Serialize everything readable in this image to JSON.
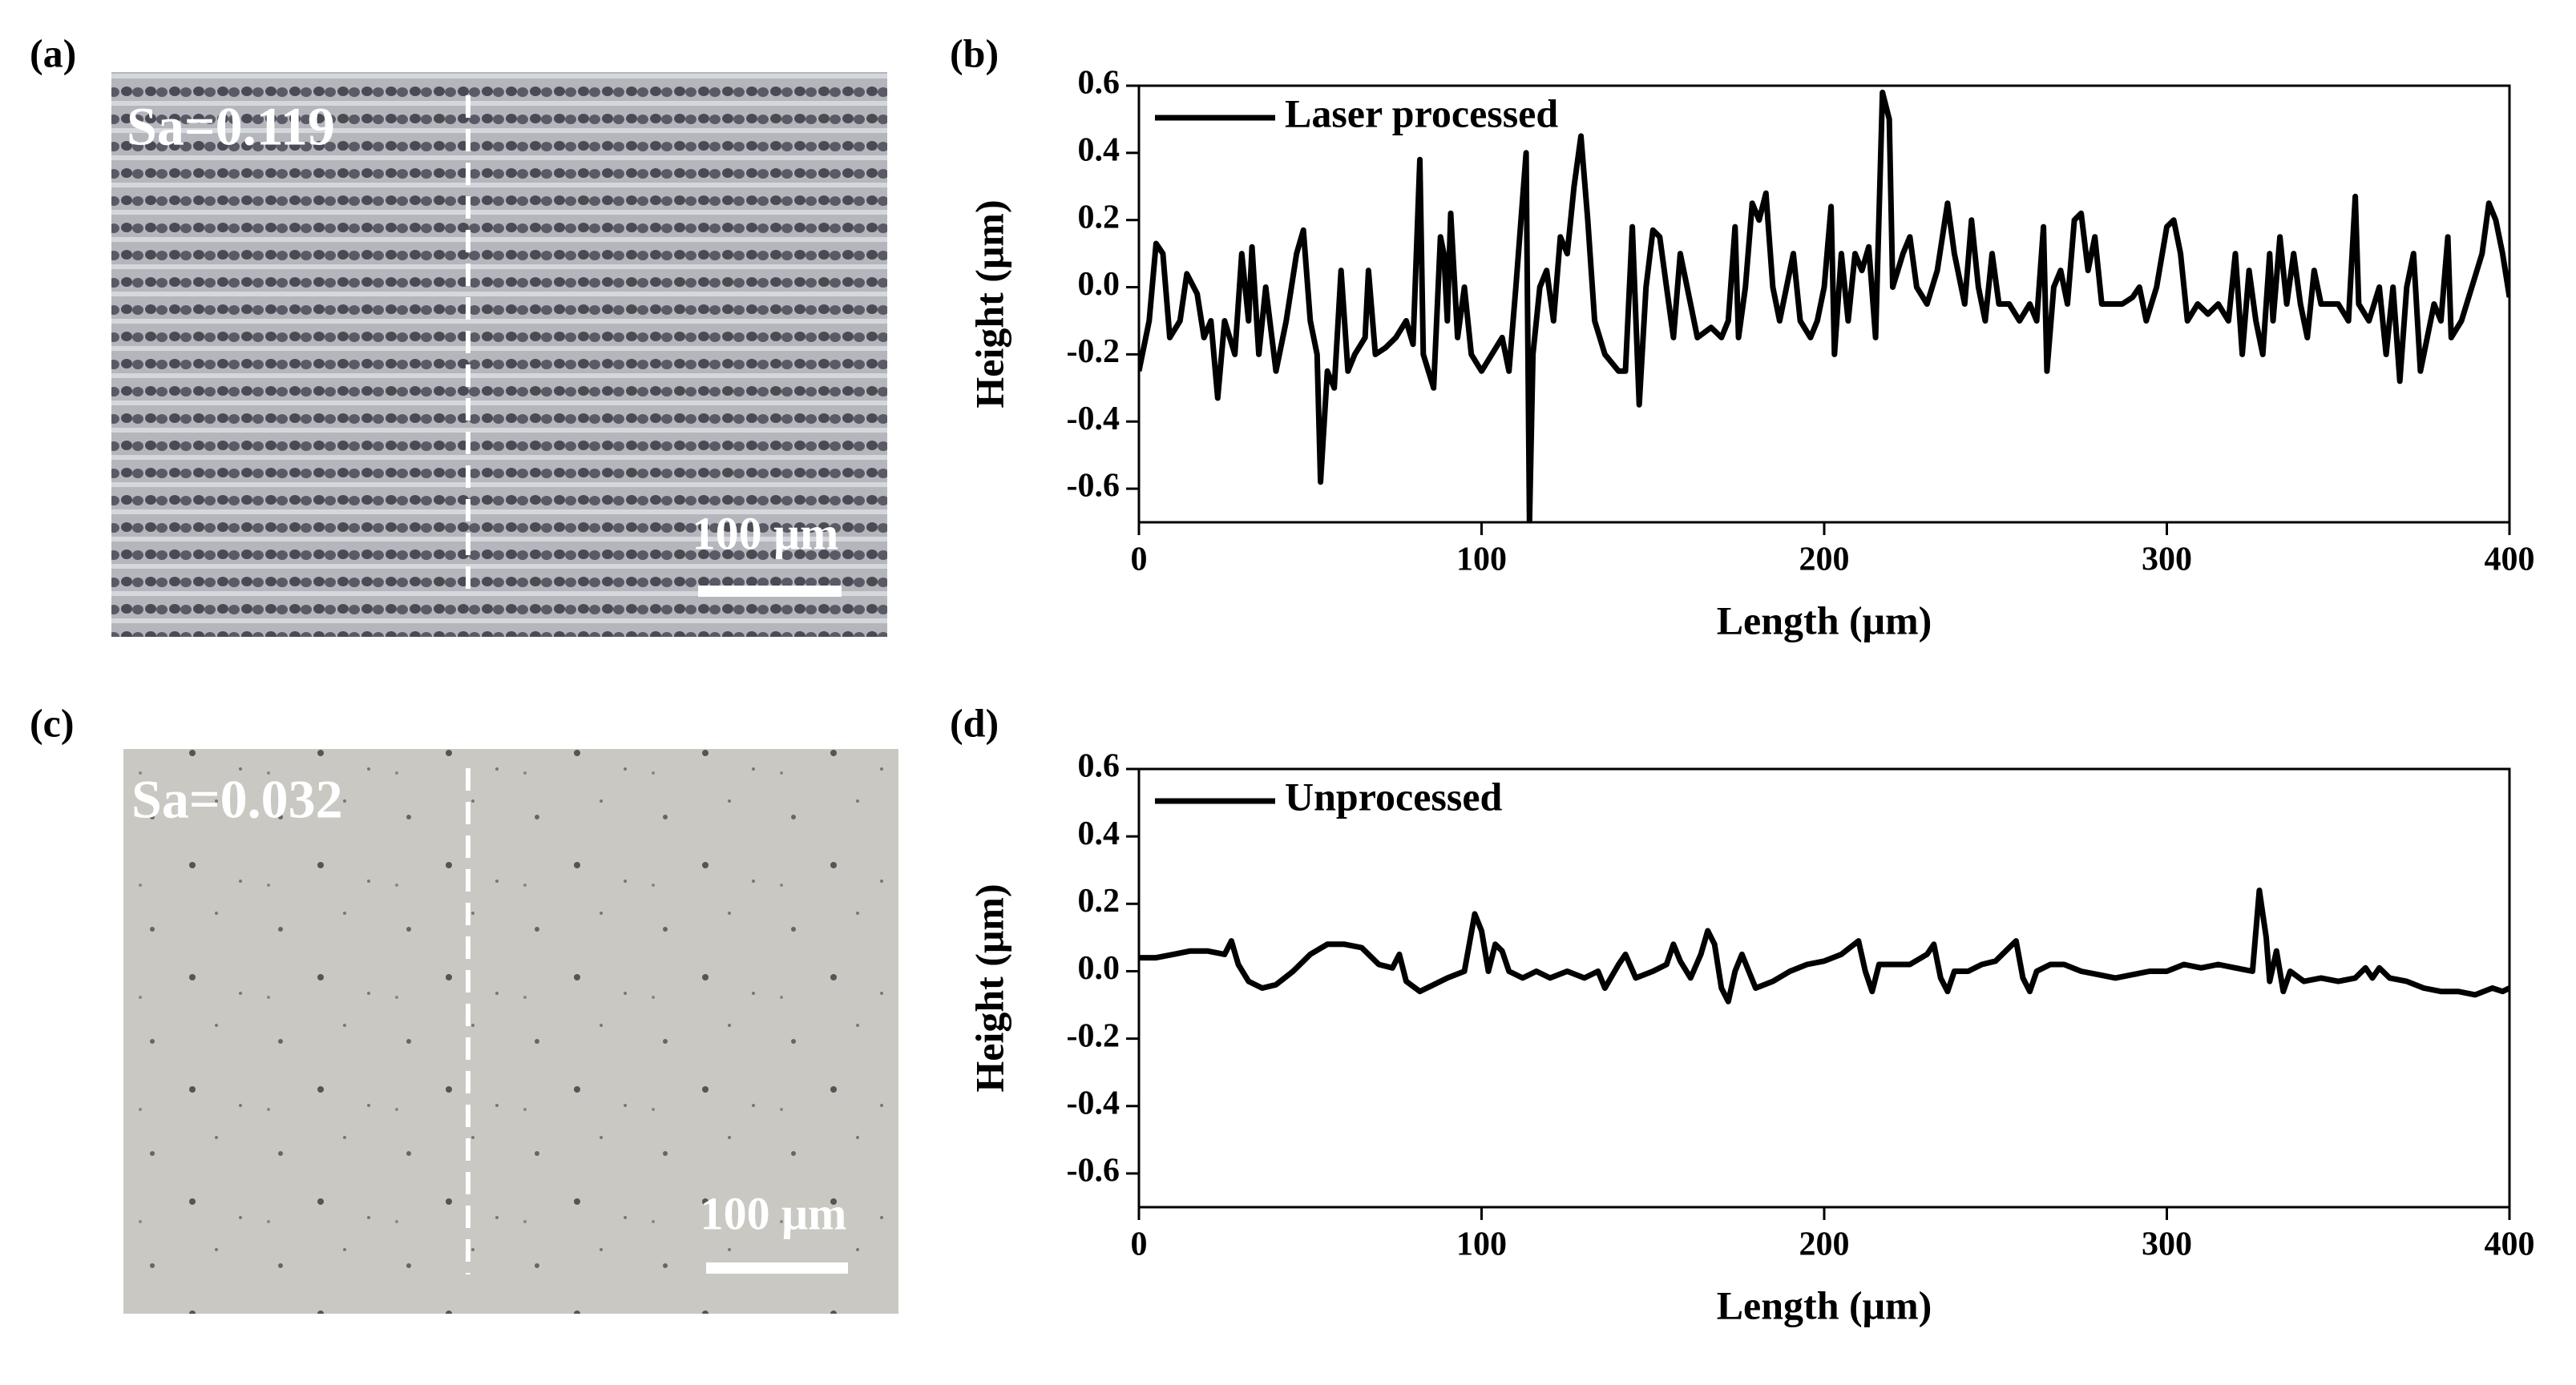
{
  "panels": [
    {
      "label": "(a)",
      "annotation": "Sa=0.119",
      "scale_bar": "100 μm"
    },
    {
      "label": "(c)",
      "annotation": "Sa=0.032",
      "scale_bar": "100 μm"
    }
  ],
  "chart_data": [
    {
      "type": "line",
      "panel_label": "(b)",
      "xlabel": "Length (μm)",
      "ylabel": "Height (μm)",
      "xlim": [
        0,
        400
      ],
      "ylim": [
        -0.7,
        0.6
      ],
      "xticks": [
        0,
        100,
        200,
        300,
        400
      ],
      "yticks": [
        -0.6,
        -0.4,
        -0.2,
        {
          "value": 0,
          "label": "0.0"
        },
        0.2,
        0.4,
        0.6
      ],
      "legend": "upper left",
      "x": [
        0,
        3,
        5,
        7,
        9,
        12,
        14,
        17,
        19,
        21,
        23,
        25,
        28,
        30,
        32,
        33,
        35,
        37,
        40,
        43,
        46,
        48,
        50,
        52,
        53,
        55,
        57,
        59,
        61,
        63,
        66,
        67,
        69,
        72,
        75,
        78,
        80,
        82,
        83,
        86,
        88,
        89,
        90,
        91,
        93,
        95,
        97,
        100,
        103,
        106,
        108,
        110,
        113,
        114,
        115,
        117,
        119,
        121,
        123,
        125,
        127,
        129,
        131,
        133,
        136,
        140,
        142,
        144,
        146,
        148,
        150,
        152,
        154,
        156,
        158,
        160,
        163,
        167,
        170,
        172,
        174,
        175,
        177,
        179,
        181,
        183,
        185,
        187,
        189,
        191,
        193,
        196,
        198,
        200,
        202,
        203,
        205,
        207,
        209,
        211,
        213,
        215,
        217,
        219,
        220,
        223,
        225,
        227,
        230,
        233,
        236,
        238,
        241,
        243,
        245,
        247,
        249,
        251,
        254,
        257,
        260,
        262,
        264,
        265,
        267,
        269,
        271,
        273,
        275,
        277,
        279,
        281,
        284,
        287,
        290,
        292,
        294,
        297,
        300,
        302,
        304,
        306,
        309,
        312,
        315,
        318,
        320,
        322,
        324,
        326,
        328,
        330,
        331,
        333,
        335,
        337,
        339,
        341,
        343,
        345,
        348,
        350,
        353,
        355,
        356,
        359,
        362,
        364,
        366,
        368,
        370,
        372,
        374,
        376,
        378,
        380,
        382,
        383,
        386,
        389,
        392,
        394,
        396,
        398,
        400
      ],
      "series": [
        {
          "name": "Laser processed",
          "color": "#000000",
          "values": [
            -0.25,
            -0.1,
            0.13,
            0.1,
            -0.15,
            -0.1,
            0.04,
            -0.02,
            -0.15,
            -0.1,
            -0.33,
            -0.1,
            -0.2,
            0.1,
            -0.1,
            0.12,
            -0.2,
            0,
            -0.25,
            -0.1,
            0.1,
            0.17,
            -0.1,
            -0.2,
            -0.58,
            -0.25,
            -0.3,
            0.05,
            -0.25,
            -0.2,
            -0.15,
            0.05,
            -0.2,
            -0.18,
            -0.15,
            -0.1,
            -0.17,
            0.38,
            -0.2,
            -0.3,
            0.15,
            0.1,
            -0.1,
            0.22,
            -0.15,
            0,
            -0.2,
            -0.25,
            -0.2,
            -0.15,
            -0.25,
            0,
            0.4,
            -0.7,
            -0.2,
            0,
            0.05,
            -0.1,
            0.15,
            0.1,
            0.3,
            0.45,
            0.2,
            -0.1,
            -0.2,
            -0.25,
            -0.25,
            0.18,
            -0.35,
            0,
            0.17,
            0.15,
            0,
            -0.15,
            0.1,
            0,
            -0.15,
            -0.12,
            -0.15,
            -0.1,
            0.18,
            -0.15,
            0,
            0.25,
            0.2,
            0.28,
            0,
            -0.1,
            0,
            0.1,
            -0.1,
            -0.15,
            -0.1,
            0,
            0.24,
            -0.2,
            0.1,
            -0.1,
            0.1,
            0.05,
            0.12,
            -0.15,
            0.58,
            0.5,
            0,
            0.1,
            0.15,
            0,
            -0.05,
            0.05,
            0.25,
            0.1,
            -0.05,
            0.2,
            0,
            -0.1,
            0.1,
            -0.05,
            -0.05,
            -0.1,
            -0.05,
            -0.1,
            0.18,
            -0.25,
            0,
            0.05,
            -0.05,
            0.2,
            0.22,
            0.05,
            0.15,
            -0.05,
            -0.05,
            -0.05,
            -0.03,
            0,
            -0.1,
            0,
            0.18,
            0.2,
            0.1,
            -0.1,
            -0.05,
            -0.08,
            -0.05,
            -0.1,
            0.1,
            -0.2,
            0.05,
            -0.1,
            -0.2,
            0.1,
            -0.1,
            0.15,
            -0.05,
            0.1,
            -0.05,
            -0.15,
            0.05,
            -0.05,
            -0.05,
            -0.05,
            -0.1,
            0.27,
            -0.05,
            -0.1,
            0,
            -0.2,
            0,
            -0.28,
            0,
            0.1,
            -0.25,
            -0.15,
            -0.05,
            -0.1,
            0.15,
            -0.15,
            -0.1,
            0,
            0.1,
            0.25,
            0.2,
            0.1,
            -0.03
          ]
        }
      ]
    },
    {
      "type": "line",
      "panel_label": "(d)",
      "xlabel": "Length (μm)",
      "ylabel": "Height (μm)",
      "xlim": [
        0,
        400
      ],
      "ylim": [
        -0.7,
        0.6
      ],
      "xticks": [
        0,
        100,
        200,
        300,
        400
      ],
      "yticks": [
        -0.6,
        -0.4,
        -0.2,
        {
          "value": 0,
          "label": "0.0"
        },
        0.2,
        0.4,
        0.6
      ],
      "legend": "upper left",
      "x": [
        0,
        5,
        10,
        15,
        20,
        25,
        27,
        29,
        32,
        36,
        40,
        45,
        50,
        55,
        60,
        65,
        70,
        74,
        76,
        78,
        82,
        86,
        90,
        95,
        98,
        100,
        102,
        104,
        106,
        108,
        112,
        116,
        120,
        125,
        130,
        134,
        136,
        140,
        142,
        145,
        150,
        154,
        156,
        158,
        161,
        164,
        166,
        168,
        170,
        172,
        174,
        176,
        178,
        180,
        185,
        190,
        195,
        200,
        205,
        210,
        212,
        214,
        216,
        220,
        225,
        230,
        232,
        234,
        236,
        238,
        242,
        246,
        250,
        254,
        256,
        258,
        260,
        262,
        266,
        270,
        275,
        280,
        285,
        290,
        295,
        300,
        305,
        310,
        315,
        320,
        325,
        327,
        329,
        330,
        332,
        334,
        336,
        340,
        345,
        350,
        355,
        358,
        360,
        362,
        365,
        370,
        375,
        380,
        385,
        390,
        395,
        398,
        400
      ],
      "series": [
        {
          "name": "Unprocessed",
          "color": "#000000",
          "values": [
            0.04,
            0.04,
            0.05,
            0.06,
            0.06,
            0.05,
            0.09,
            0.02,
            -0.03,
            -0.05,
            -0.04,
            0,
            0.05,
            0.08,
            0.08,
            0.07,
            0.02,
            0.01,
            0.05,
            -0.03,
            -0.06,
            -0.04,
            -0.02,
            0,
            0.17,
            0.12,
            0,
            0.08,
            0.06,
            0,
            -0.02,
            0,
            -0.02,
            0,
            -0.02,
            0,
            -0.05,
            0.02,
            0.05,
            -0.02,
            0,
            0.02,
            0.08,
            0.03,
            -0.02,
            0.05,
            0.12,
            0.08,
            -0.05,
            -0.09,
            0,
            0.05,
            0,
            -0.05,
            -0.03,
            0,
            0.02,
            0.03,
            0.05,
            0.09,
            0,
            -0.06,
            0.02,
            0.02,
            0.02,
            0.05,
            0.08,
            -0.02,
            -0.06,
            0,
            0,
            0.02,
            0.03,
            0.07,
            0.09,
            -0.02,
            -0.06,
            0,
            0.02,
            0.02,
            0,
            -0.01,
            -0.02,
            -0.01,
            0,
            0,
            0.02,
            0.01,
            0.02,
            0.01,
            0,
            0.24,
            0.1,
            -0.03,
            0.06,
            -0.06,
            0,
            -0.03,
            -0.02,
            -0.03,
            -0.02,
            0.01,
            -0.02,
            0.01,
            -0.02,
            -0.03,
            -0.05,
            -0.06,
            -0.06,
            -0.07,
            -0.05,
            -0.06,
            -0.05
          ]
        }
      ]
    }
  ]
}
